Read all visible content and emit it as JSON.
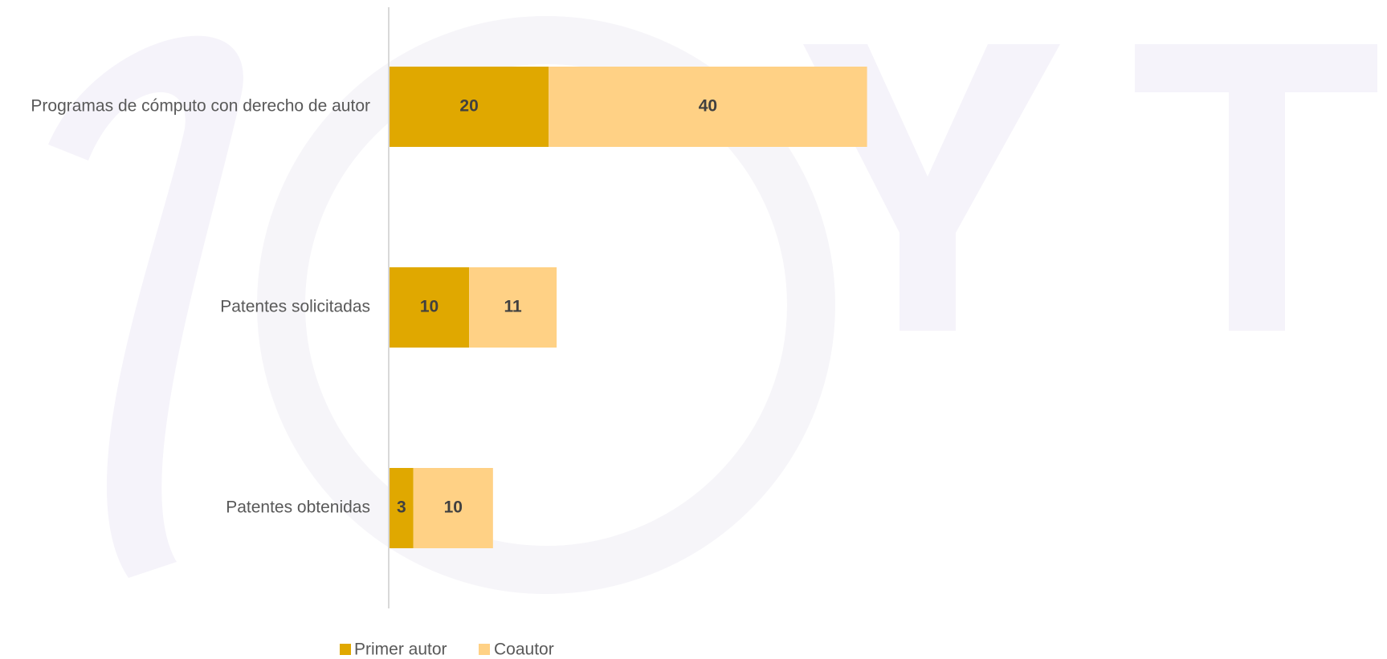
{
  "chart_data": {
    "type": "bar",
    "orientation": "horizontal",
    "stacked": true,
    "categories": [
      "Programas de cómputo con derecho de autor",
      "Patentes solicitadas",
      "Patentes obtenidas"
    ],
    "series": [
      {
        "name": "Primer autor",
        "color": "#e0a800",
        "values": [
          20,
          10,
          3
        ]
      },
      {
        "name": "Coautor",
        "color": "#ffd185",
        "values": [
          40,
          11,
          10
        ]
      }
    ],
    "legend": "bottom"
  }
}
